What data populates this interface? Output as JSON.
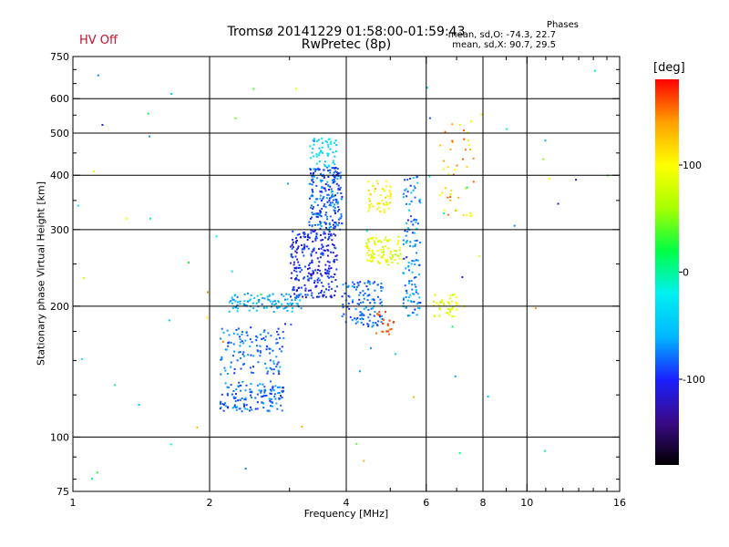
{
  "header": {
    "title_line1": "Tromsø 20141229 01:58:00-01:59:43",
    "title_line2": "RwPretec (8p)",
    "status": "HV Off",
    "status_color": "#c8102e",
    "phases_title": "Phases",
    "phases_o": "mean, sd,O: -74.3, 22.7",
    "phases_x": "mean, sd,X:  90.7, 29.5"
  },
  "chart_data": {
    "type": "scatter",
    "xlabel": "Frequency [MHz]",
    "ylabel": "Stationary phase Virtual Height [km]",
    "xscale": "log",
    "yscale": "log",
    "xlim": [
      1,
      16
    ],
    "ylim": [
      75,
      750
    ],
    "x_ticks": [
      1,
      2,
      4,
      6,
      8,
      10,
      16
    ],
    "x_minor_ticks": [
      3,
      5,
      7,
      9,
      11,
      12,
      13,
      14,
      15
    ],
    "y_ticks": [
      75,
      100,
      200,
      300,
      400,
      500,
      600,
      750
    ],
    "y_minor_ticks": [
      80,
      90,
      125,
      150,
      175,
      250,
      350,
      450,
      550,
      650,
      700
    ],
    "grid_x": [
      2,
      4,
      6,
      8,
      10
    ],
    "grid_y": [
      100,
      200,
      300,
      400,
      500,
      600
    ],
    "colorbar": {
      "unit": "[deg]",
      "min": -180,
      "max": 180,
      "ticks": [
        100,
        0,
        -100
      ],
      "colors": [
        "#000000",
        "#3a0a88",
        "#1a20ff",
        "#00b8ff",
        "#00f0f0",
        "#00ff44",
        "#a8ff00",
        "#ffff00",
        "#ffa000",
        "#ff0000"
      ]
    },
    "clusters": [
      {
        "x": [
          2.1,
          2.9
        ],
        "y": [
          115,
          135
        ],
        "phase": [
          -60,
          -100
        ],
        "n": 140
      },
      {
        "x": [
          2.1,
          2.9
        ],
        "y": [
          140,
          180
        ],
        "phase": [
          -60,
          -100
        ],
        "n": 120
      },
      {
        "x": [
          2.2,
          3.2
        ],
        "y": [
          195,
          215
        ],
        "phase": [
          -40,
          -80
        ],
        "n": 100
      },
      {
        "x": [
          3.0,
          3.8
        ],
        "y": [
          210,
          300
        ],
        "phase": [
          -120,
          -80
        ],
        "n": 260
      },
      {
        "x": [
          3.3,
          3.9
        ],
        "y": [
          300,
          420
        ],
        "phase": [
          -110,
          -60
        ],
        "n": 230
      },
      {
        "x": [
          3.3,
          3.8
        ],
        "y": [
          420,
          490
        ],
        "phase": [
          -50,
          -20
        ],
        "n": 50
      },
      {
        "x": [
          3.9,
          4.8
        ],
        "y": [
          180,
          230
        ],
        "phase": [
          -100,
          -60
        ],
        "n": 120
      },
      {
        "x": [
          4.4,
          5.3
        ],
        "y": [
          250,
          290
        ],
        "phase": [
          60,
          110
        ],
        "n": 90
      },
      {
        "x": [
          4.4,
          5.0
        ],
        "y": [
          330,
          390
        ],
        "phase": [
          80,
          120
        ],
        "n": 50
      },
      {
        "x": [
          4.6,
          5.1
        ],
        "y": [
          170,
          195
        ],
        "phase": [
          150,
          170
        ],
        "n": 20
      },
      {
        "x": [
          5.3,
          5.8
        ],
        "y": [
          190,
          400
        ],
        "phase": [
          -100,
          -40
        ],
        "n": 120
      },
      {
        "x": [
          6.2,
          7.0
        ],
        "y": [
          190,
          215
        ],
        "phase": [
          60,
          110
        ],
        "n": 40
      },
      {
        "x": [
          6.4,
          7.6
        ],
        "y": [
          320,
          560
        ],
        "phase": [
          80,
          160
        ],
        "n": 45
      },
      {
        "x": [
          1.0,
          16.0
        ],
        "y": [
          80,
          720
        ],
        "phase": [
          -120,
          160
        ],
        "n": 70
      }
    ]
  }
}
